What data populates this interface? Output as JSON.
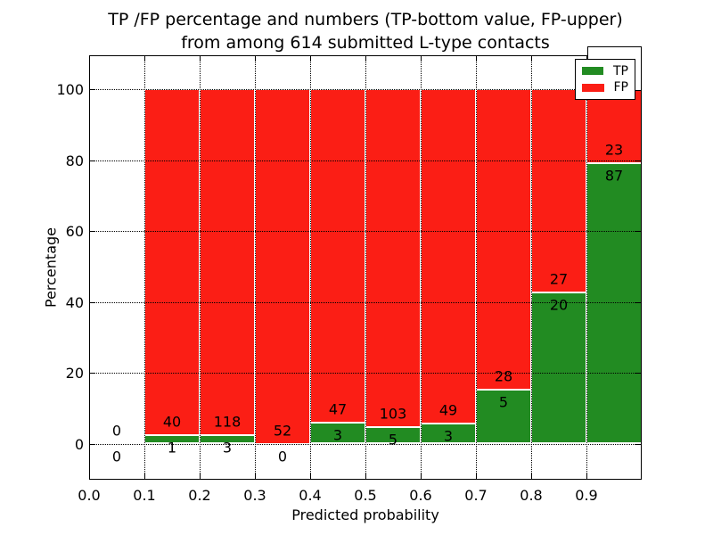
{
  "figure": {
    "title_line1": "TP /FP percentage and numbers (TP-bottom value, FP-upper)",
    "title_line2": "from among 614 submitted L-type contacts"
  },
  "chart_data": {
    "type": "bar",
    "stacked": true,
    "title": "TP /FP percentage and numbers (TP-bottom value, FP-upper)\nfrom among 614 submitted L-type contacts",
    "xlabel": "Predicted probability",
    "ylabel": "Percentage",
    "xlim": [
      0.0,
      1.0
    ],
    "ylim": [
      -10.5,
      110
    ],
    "xticks": [
      "0.0",
      "0.1",
      "0.2",
      "0.3",
      "0.4",
      "0.5",
      "0.6",
      "0.7",
      "0.8",
      "0.9"
    ],
    "yticks": [
      "0",
      "20",
      "40",
      "60",
      "80",
      "100"
    ],
    "grid": "dotted-black",
    "legend_position": "upper-right",
    "series": [
      {
        "name": "TP",
        "color": "#228b22"
      },
      {
        "name": "FP",
        "color": "#fb1e15"
      }
    ],
    "total_contacts": 614,
    "bins": [
      {
        "range": [
          0.0,
          0.1
        ],
        "tp": 0,
        "fp": 0
      },
      {
        "range": [
          0.1,
          0.2
        ],
        "tp": 1,
        "fp": 40
      },
      {
        "range": [
          0.2,
          0.3
        ],
        "tp": 3,
        "fp": 118
      },
      {
        "range": [
          0.3,
          0.4
        ],
        "tp": 0,
        "fp": 52
      },
      {
        "range": [
          0.4,
          0.5
        ],
        "tp": 3,
        "fp": 47
      },
      {
        "range": [
          0.5,
          0.6
        ],
        "tp": 5,
        "fp": 103
      },
      {
        "range": [
          0.6,
          0.7
        ],
        "tp": 3,
        "fp": 49
      },
      {
        "range": [
          0.7,
          0.8
        ],
        "tp": 5,
        "fp": 28
      },
      {
        "range": [
          0.8,
          0.9
        ],
        "tp": 20,
        "fp": 27
      },
      {
        "range": [
          0.9,
          1.0
        ],
        "tp": 87,
        "fp": 23
      }
    ]
  }
}
